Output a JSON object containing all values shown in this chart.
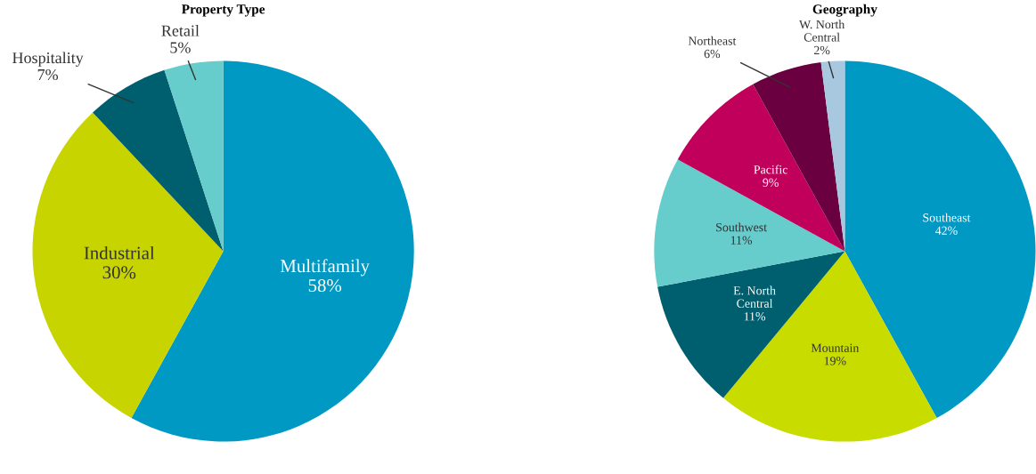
{
  "chart_data": [
    {
      "type": "pie",
      "title": "Property Type",
      "categories": [
        "Multifamily",
        "Industrial",
        "Hospitality",
        "Retail"
      ],
      "values": [
        58,
        30,
        7,
        5
      ],
      "value_labels": [
        "58%",
        "30%",
        "7%",
        "5%"
      ],
      "colors": [
        "#0099c4",
        "#c8d400",
        "#005f6e",
        "#66cccc"
      ],
      "legend": false
    },
    {
      "type": "pie",
      "title": "Geography",
      "categories": [
        "Southeast",
        "Mountain",
        "E. North Central",
        "Southwest",
        "Pacific",
        "Northeast",
        "W. North Central"
      ],
      "values": [
        42,
        19,
        11,
        11,
        9,
        6,
        2
      ],
      "value_labels": [
        "42%",
        "19%",
        "11%",
        "11%",
        "9%",
        "6%",
        "2%"
      ],
      "colors": [
        "#0099c4",
        "#c8dc00",
        "#005f6e",
        "#66cccc",
        "#c0005a",
        "#6a0040",
        "#a8c8e0"
      ],
      "legend": false
    }
  ]
}
